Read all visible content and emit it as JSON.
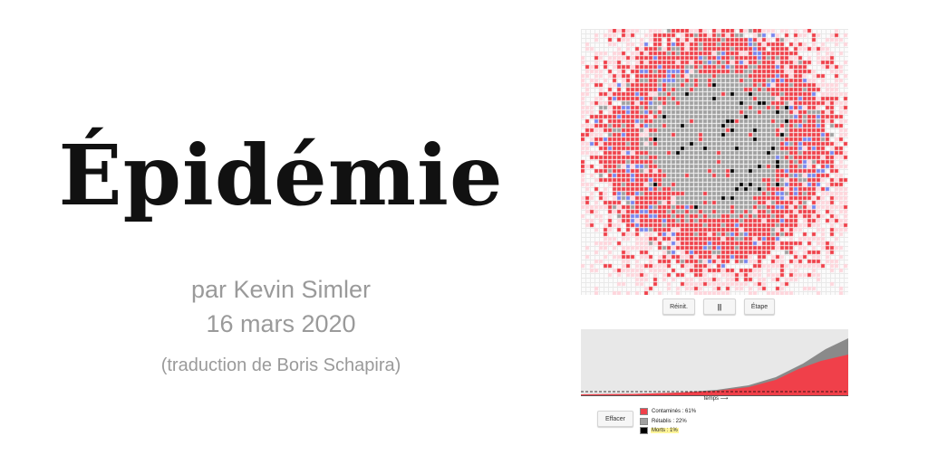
{
  "title": "Épidémie",
  "author": "par Kevin Simler",
  "date": "16 mars 2020",
  "translator": "(traduction de Boris Schapira)",
  "simulation": {
    "colors": {
      "infected": "#f0404a",
      "recovered": "#a0a0a0",
      "dead": "#000000",
      "exposed": "#7a86ee",
      "susceptible_halo": "#ffd6dc"
    }
  },
  "controls": {
    "reset_label": "Réinit.",
    "pause_label": "||",
    "step_label": "Étape",
    "clear_label": "Effacer"
  },
  "chart": {
    "axis_label": "temps ⟶",
    "background": "#e8e8e8"
  },
  "legend": {
    "items": [
      {
        "label": "Contaminés : 61%",
        "color": "#f0404a",
        "percent": 61,
        "highlight": false
      },
      {
        "label": "Rétablis : 22%",
        "color": "#a0a0a0",
        "percent": 22,
        "highlight": false
      },
      {
        "label": "Morts : 1%",
        "color": "#000000",
        "percent": 1,
        "highlight": true
      }
    ]
  }
}
